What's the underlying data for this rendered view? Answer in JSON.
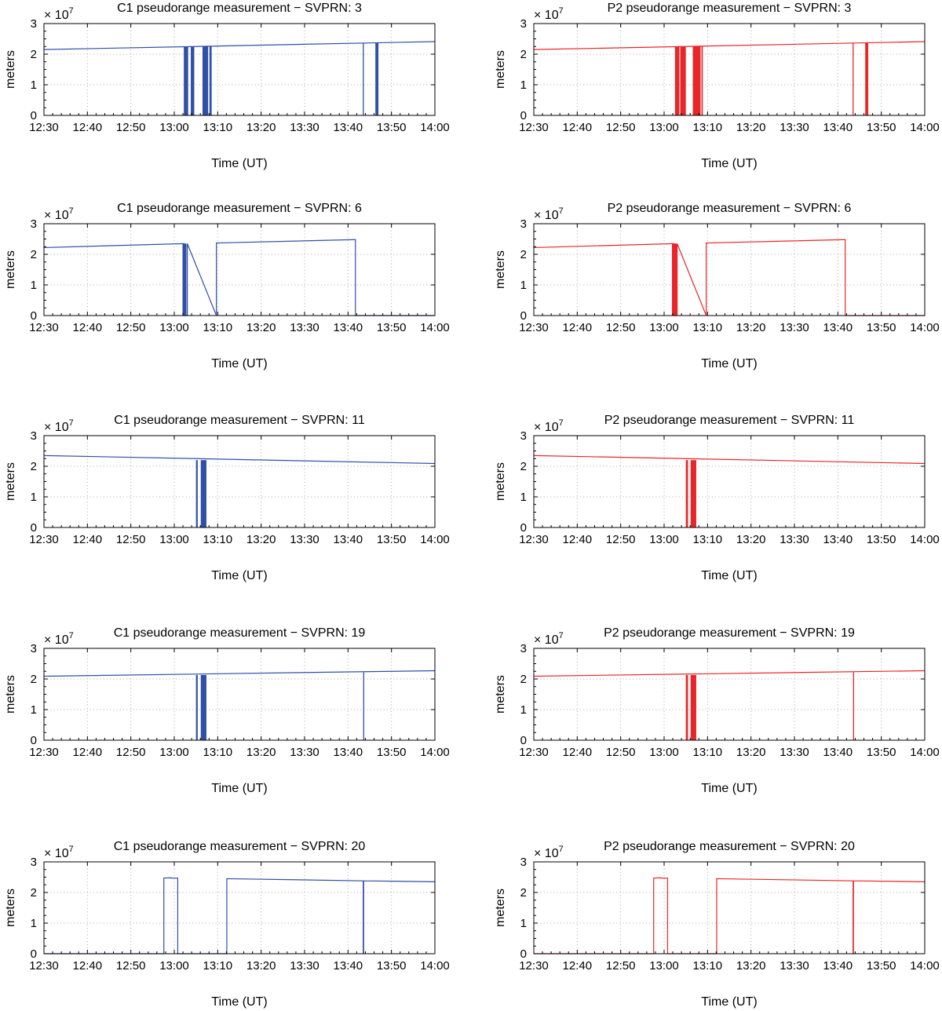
{
  "figure": {
    "panel_count": 10,
    "columns": 2,
    "colors": {
      "C1": "#2f4fa8",
      "P2": "#e8262a"
    }
  },
  "chart_data": [
    {
      "type": "line",
      "title": "C1 pseudorange measurement − SVPRN: 3",
      "signal": "C1",
      "color": "#2f4fa8",
      "xlabel": "Time (UT)",
      "ylabel": "meters",
      "y_multiplier": "× 10",
      "y_exponent": "7",
      "x_tick_labels": [
        "12:30",
        "12:40",
        "12:50",
        "13:00",
        "13:10",
        "13:20",
        "13:30",
        "13:40",
        "13:50",
        "14:00"
      ],
      "xlim": [
        0,
        90
      ],
      "ylim": [
        0,
        3
      ],
      "y_ticks": [
        0,
        1,
        2,
        3
      ],
      "y_tick_labels": [
        "0",
        "1",
        "2",
        "3"
      ],
      "x_units": "minutes after 12:30 UT",
      "y_units": "1e7 meters",
      "grid": true,
      "segments": [
        {
          "x": [
            0,
            90
          ],
          "y": [
            2.15,
            2.41
          ]
        }
      ],
      "dropouts": [
        {
          "from": 32.2,
          "to": 33.2,
          "y": 2.24
        },
        {
          "from": 33.8,
          "to": 34.6,
          "y": 2.24
        },
        {
          "from": 36.5,
          "to": 37.8,
          "y": 2.25
        },
        {
          "from": 38.1,
          "to": 38.6,
          "y": 2.25
        },
        {
          "from": 73.4,
          "to": 73.5,
          "y": 2.36
        },
        {
          "from": 76.3,
          "to": 77.0,
          "y": 2.37
        }
      ]
    },
    {
      "type": "line",
      "title": "P2 pseudorange measurement − SVPRN: 3",
      "signal": "P2",
      "color": "#e8262a",
      "xlabel": "Time (UT)",
      "ylabel": "meters",
      "y_multiplier": "× 10",
      "y_exponent": "7",
      "x_tick_labels": [
        "12:30",
        "12:40",
        "12:50",
        "13:00",
        "13:10",
        "13:20",
        "13:30",
        "13:40",
        "13:50",
        "14:00"
      ],
      "xlim": [
        0,
        90
      ],
      "ylim": [
        0,
        3
      ],
      "y_ticks": [
        0,
        1,
        2,
        3
      ],
      "y_tick_labels": [
        "0",
        "1",
        "2",
        "3"
      ],
      "x_units": "minutes after 12:30 UT",
      "y_units": "1e7 meters",
      "grid": true,
      "segments": [
        {
          "x": [
            0,
            90
          ],
          "y": [
            2.15,
            2.41
          ]
        }
      ],
      "dropouts": [
        {
          "from": 32.5,
          "to": 33.5,
          "y": 2.24
        },
        {
          "from": 33.7,
          "to": 35.0,
          "y": 2.24
        },
        {
          "from": 36.6,
          "to": 38.4,
          "y": 2.25
        },
        {
          "from": 38.6,
          "to": 38.9,
          "y": 2.25
        },
        {
          "from": 73.4,
          "to": 73.5,
          "y": 2.36
        },
        {
          "from": 76.3,
          "to": 77.0,
          "y": 2.37
        }
      ]
    },
    {
      "type": "line",
      "title": "C1 pseudorange measurement − SVPRN: 6",
      "signal": "C1",
      "color": "#2f4fa8",
      "xlabel": "Time (UT)",
      "ylabel": "meters",
      "y_multiplier": "× 10",
      "y_exponent": "7",
      "x_tick_labels": [
        "12:30",
        "12:40",
        "12:50",
        "13:00",
        "13:10",
        "13:20",
        "13:30",
        "13:40",
        "13:50",
        "14:00"
      ],
      "xlim": [
        0,
        90
      ],
      "ylim": [
        0,
        3
      ],
      "y_ticks": [
        0,
        1,
        2,
        3
      ],
      "y_tick_labels": [
        "0",
        "1",
        "2",
        "3"
      ],
      "x_units": "minutes after 12:30 UT",
      "y_units": "1e7 meters",
      "grid": true,
      "segments": [
        {
          "x": [
            0,
            32.3,
            32.3,
            33.0,
            33.0,
            39.7,
            39.7,
            71.7,
            71.7,
            90
          ],
          "y": [
            2.22,
            2.35,
            0,
            0,
            2.35,
            0,
            2.37,
            2.48,
            0,
            0
          ]
        }
      ],
      "dropouts": [
        {
          "from": 31.9,
          "to": 32.8,
          "y": 2.35
        }
      ]
    },
    {
      "type": "line",
      "title": "P2 pseudorange measurement − SVPRN: 6",
      "signal": "P2",
      "color": "#e8262a",
      "xlabel": "Time (UT)",
      "ylabel": "meters",
      "y_multiplier": "× 10",
      "y_exponent": "7",
      "x_tick_labels": [
        "12:30",
        "12:40",
        "12:50",
        "13:00",
        "13:10",
        "13:20",
        "13:30",
        "13:40",
        "13:50",
        "14:00"
      ],
      "xlim": [
        0,
        90
      ],
      "ylim": [
        0,
        3
      ],
      "y_ticks": [
        0,
        1,
        2,
        3
      ],
      "y_tick_labels": [
        "0",
        "1",
        "2",
        "3"
      ],
      "x_units": "minutes after 12:30 UT",
      "y_units": "1e7 meters",
      "grid": true,
      "segments": [
        {
          "x": [
            0,
            32.3,
            32.3,
            33.0,
            33.0,
            39.7,
            39.7,
            71.7,
            71.7,
            90
          ],
          "y": [
            2.22,
            2.35,
            0,
            0,
            2.35,
            0,
            2.37,
            2.48,
            0,
            0
          ]
        }
      ],
      "dropouts": [
        {
          "from": 31.8,
          "to": 32.9,
          "y": 2.35
        }
      ]
    },
    {
      "type": "line",
      "title": "C1 pseudorange measurement − SVPRN: 11",
      "signal": "C1",
      "color": "#2f4fa8",
      "xlabel": "Time (UT)",
      "ylabel": "meters",
      "y_multiplier": "× 10",
      "y_exponent": "7",
      "x_tick_labels": [
        "12:30",
        "12:40",
        "12:50",
        "13:00",
        "13:10",
        "13:20",
        "13:30",
        "13:40",
        "13:50",
        "14:00"
      ],
      "xlim": [
        0,
        90
      ],
      "ylim": [
        0,
        3
      ],
      "y_ticks": [
        0,
        1,
        2,
        3
      ],
      "y_tick_labels": [
        "0",
        "1",
        "2",
        "3"
      ],
      "x_units": "minutes after 12:30 UT",
      "y_units": "1e7 meters",
      "grid": true,
      "segments": [
        {
          "x": [
            0,
            90
          ],
          "y": [
            2.35,
            2.09
          ]
        }
      ],
      "dropouts": [
        {
          "from": 35.0,
          "to": 35.4,
          "y": 2.2
        },
        {
          "from": 36.1,
          "to": 37.4,
          "y": 2.2
        }
      ]
    },
    {
      "type": "line",
      "title": "P2 pseudorange measurement − SVPRN: 11",
      "signal": "P2",
      "color": "#e8262a",
      "xlabel": "Time (UT)",
      "ylabel": "meters",
      "y_multiplier": "× 10",
      "y_exponent": "7",
      "x_tick_labels": [
        "12:30",
        "12:40",
        "12:50",
        "13:00",
        "13:10",
        "13:20",
        "13:30",
        "13:40",
        "13:50",
        "14:00"
      ],
      "xlim": [
        0,
        90
      ],
      "ylim": [
        0,
        3
      ],
      "y_ticks": [
        0,
        1,
        2,
        3
      ],
      "y_tick_labels": [
        "0",
        "1",
        "2",
        "3"
      ],
      "x_units": "minutes after 12:30 UT",
      "y_units": "1e7 meters",
      "grid": true,
      "segments": [
        {
          "x": [
            0,
            90
          ],
          "y": [
            2.35,
            2.09
          ]
        }
      ],
      "dropouts": [
        {
          "from": 35.0,
          "to": 35.5,
          "y": 2.2
        },
        {
          "from": 36.1,
          "to": 37.4,
          "y": 2.2
        }
      ]
    },
    {
      "type": "line",
      "title": "C1 pseudorange measurement − SVPRN: 19",
      "signal": "C1",
      "color": "#2f4fa8",
      "xlabel": "Time (UT)",
      "ylabel": "meters",
      "y_multiplier": "× 10",
      "y_exponent": "7",
      "x_tick_labels": [
        "12:30",
        "12:40",
        "12:50",
        "13:00",
        "13:10",
        "13:20",
        "13:30",
        "13:40",
        "13:50",
        "14:00"
      ],
      "xlim": [
        0,
        90
      ],
      "ylim": [
        0,
        3
      ],
      "y_ticks": [
        0,
        1,
        2,
        3
      ],
      "y_tick_labels": [
        "0",
        "1",
        "2",
        "3"
      ],
      "x_units": "minutes after 12:30 UT",
      "y_units": "1e7 meters",
      "grid": true,
      "segments": [
        {
          "x": [
            0,
            90
          ],
          "y": [
            2.09,
            2.27
          ]
        }
      ],
      "dropouts": [
        {
          "from": 35.0,
          "to": 35.4,
          "y": 2.13
        },
        {
          "from": 36.1,
          "to": 37.4,
          "y": 2.13
        },
        {
          "from": 73.5,
          "to": 73.6,
          "y": 2.22
        }
      ]
    },
    {
      "type": "line",
      "title": "P2 pseudorange measurement − SVPRN: 19",
      "signal": "P2",
      "color": "#e8262a",
      "xlabel": "Time (UT)",
      "ylabel": "meters",
      "y_multiplier": "× 10",
      "y_exponent": "7",
      "x_tick_labels": [
        "12:30",
        "12:40",
        "12:50",
        "13:00",
        "13:10",
        "13:20",
        "13:30",
        "13:40",
        "13:50",
        "14:00"
      ],
      "xlim": [
        0,
        90
      ],
      "ylim": [
        0,
        3
      ],
      "y_ticks": [
        0,
        1,
        2,
        3
      ],
      "y_tick_labels": [
        "0",
        "1",
        "2",
        "3"
      ],
      "x_units": "minutes after 12:30 UT",
      "y_units": "1e7 meters",
      "grid": true,
      "segments": [
        {
          "x": [
            0,
            90
          ],
          "y": [
            2.09,
            2.27
          ]
        }
      ],
      "dropouts": [
        {
          "from": 35.0,
          "to": 35.5,
          "y": 2.13
        },
        {
          "from": 36.1,
          "to": 37.4,
          "y": 2.13
        },
        {
          "from": 73.5,
          "to": 73.6,
          "y": 2.22
        }
      ]
    },
    {
      "type": "line",
      "title": "C1 pseudorange measurement − SVPRN: 20",
      "signal": "C1",
      "color": "#2f4fa8",
      "xlabel": "Time (UT)",
      "ylabel": "meters",
      "y_multiplier": "× 10",
      "y_exponent": "7",
      "x_tick_labels": [
        "12:30",
        "12:40",
        "12:50",
        "13:00",
        "13:10",
        "13:20",
        "13:30",
        "13:40",
        "13:50",
        "14:00"
      ],
      "xlim": [
        0,
        90
      ],
      "ylim": [
        0,
        3
      ],
      "y_ticks": [
        0,
        1,
        2,
        3
      ],
      "y_tick_labels": [
        "0",
        "1",
        "2",
        "3"
      ],
      "x_units": "minutes after 12:30 UT",
      "y_units": "1e7 meters",
      "grid": true,
      "segments": [
        {
          "x": [
            0,
            27.6,
            27.6,
            29.2,
            29.2,
            30.8,
            30.8,
            42.1,
            42.1,
            73.5,
            73.5,
            73.6,
            73.6,
            90
          ],
          "y": [
            0,
            0,
            2.47,
            2.48,
            2.47,
            2.47,
            0,
            0,
            2.45,
            2.38,
            0,
            0,
            2.38,
            2.35
          ]
        }
      ],
      "dropouts": []
    },
    {
      "type": "line",
      "title": "P2 pseudorange measurement − SVPRN: 20",
      "signal": "P2",
      "color": "#e8262a",
      "xlabel": "Time (UT)",
      "ylabel": "meters",
      "y_multiplier": "× 10",
      "y_exponent": "7",
      "x_tick_labels": [
        "12:30",
        "12:40",
        "12:50",
        "13:00",
        "13:10",
        "13:20",
        "13:30",
        "13:40",
        "13:50",
        "14:00"
      ],
      "xlim": [
        0,
        90
      ],
      "ylim": [
        0,
        3
      ],
      "y_ticks": [
        0,
        1,
        2,
        3
      ],
      "y_tick_labels": [
        "0",
        "1",
        "2",
        "3"
      ],
      "x_units": "minutes after 12:30 UT",
      "y_units": "1e7 meters",
      "grid": true,
      "segments": [
        {
          "x": [
            0,
            27.6,
            27.6,
            29.2,
            29.2,
            30.8,
            30.8,
            42.1,
            42.1,
            73.5,
            73.5,
            73.6,
            73.6,
            90
          ],
          "y": [
            0,
            0,
            2.47,
            2.48,
            2.47,
            2.47,
            0,
            0,
            2.45,
            2.38,
            0,
            0,
            2.38,
            2.35
          ]
        }
      ],
      "dropouts": []
    }
  ]
}
